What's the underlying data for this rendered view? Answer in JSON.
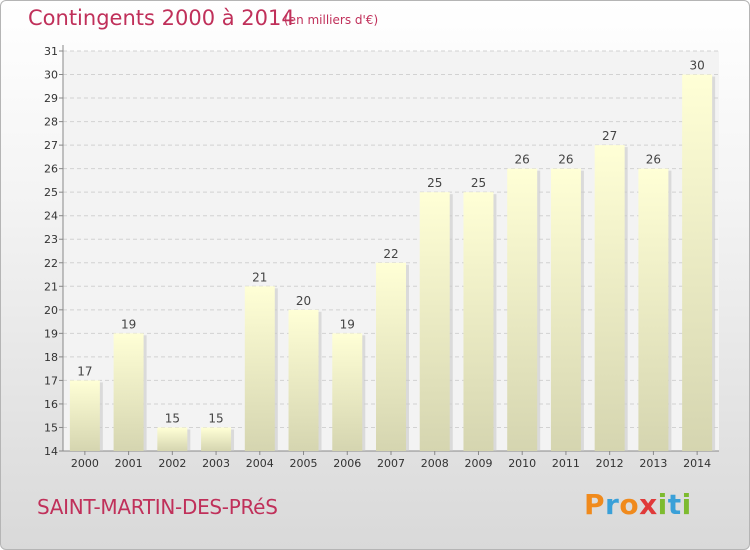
{
  "header": {
    "title": "Contingents 2000 à 2014",
    "subtitle": "(en milliers d'€)"
  },
  "footer": {
    "commune": "SAINT-MARTIN-DES-PRéS",
    "logo_letters": [
      "P",
      "r",
      "o",
      "x",
      "i",
      "t",
      "i"
    ]
  },
  "colors": {
    "title": "#c0305a",
    "bar_top": "#ffffd6",
    "bar_bottom": "#d5d5b0",
    "logo": [
      "#f08a1c",
      "#3aa0d8",
      "#f08a1c",
      "#e03a3a",
      "#7dbb2f",
      "#3aa0d8",
      "#7dbb2f"
    ]
  },
  "chart_data": {
    "type": "bar",
    "categories": [
      "2000",
      "2001",
      "2002",
      "2003",
      "2004",
      "2005",
      "2006",
      "2007",
      "2008",
      "2009",
      "2010",
      "2011",
      "2012",
      "2013",
      "2014"
    ],
    "values": [
      17,
      19,
      15,
      15,
      21,
      20,
      19,
      22,
      25,
      25,
      26,
      26,
      27,
      26,
      30
    ],
    "yticks": [
      14,
      15,
      16,
      17,
      18,
      19,
      20,
      21,
      22,
      23,
      24,
      25,
      26,
      27,
      28,
      29,
      30,
      31
    ],
    "ylim": [
      14,
      31
    ],
    "grid": true,
    "data_labels": true
  }
}
